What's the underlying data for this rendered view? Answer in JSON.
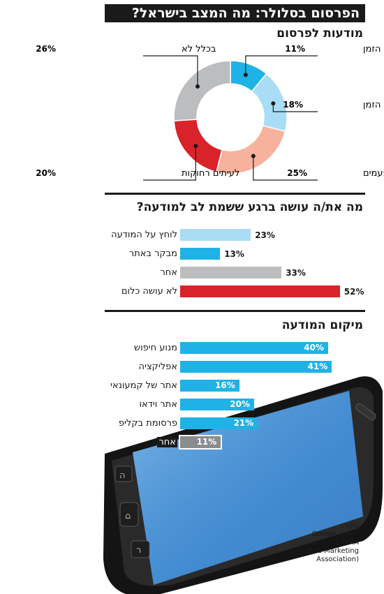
{
  "title": "הפרסום בסלולר: מה המצב בישראל?",
  "awareness": {
    "heading": "מודעות לפרסום",
    "chart_data": {
      "type": "pie",
      "categories": [
        "כל הזמן",
        "רוב הזמן",
        "לפעמים",
        "לעיתים רחוקות",
        "בכלל לא"
      ],
      "values": [
        11,
        18,
        25,
        20,
        26
      ],
      "value_labels": [
        "11%",
        "18%",
        "25%",
        "20%",
        "26%"
      ],
      "colors": [
        "#1fb2e6",
        "#a9dcf5",
        "#f6b29c",
        "#d8232a",
        "#bcbdbf"
      ],
      "donut": true
    }
  },
  "reaction": {
    "heading": "מה את/ה עושה ברגע ששמת לב למודעה?",
    "chart_data": {
      "type": "bar",
      "orientation": "horizontal",
      "categories": [
        "לוחץ על המודעה",
        "מבקר באתר",
        "אחר",
        "לא עושה כלום"
      ],
      "values": [
        23,
        13,
        33,
        52
      ],
      "value_labels": [
        "23%",
        "13%",
        "33%",
        "52%"
      ],
      "colors": [
        "#a9dcf5",
        "#1fb2e6",
        "#bcbdbf",
        "#d8232a"
      ]
    }
  },
  "placement": {
    "heading": "מיקום המודעה",
    "chart_data": {
      "type": "bar",
      "orientation": "horizontal",
      "categories": [
        "מנוע חיפוש",
        "אפליקציה",
        "אתר של קמעונאי",
        "אתר וידאו",
        "פרסומת בקליפ",
        "אחר"
      ],
      "values": [
        40,
        41,
        16,
        20,
        21,
        11
      ],
      "value_labels": [
        "40%",
        "41%",
        "16%",
        "20%",
        "21%",
        "11%"
      ],
      "colors": [
        "#1fb2e6",
        "#1fb2e6",
        "#1fb2e6",
        "#1fb2e6",
        "#1fb2e6",
        "#8a8c8e"
      ]
    }
  },
  "source": {
    "heading": "מקור:",
    "lines": [
      "Google, Ipsos",
      "and the MMA",
      "(Mobile Marketing",
      "Association)"
    ]
  }
}
